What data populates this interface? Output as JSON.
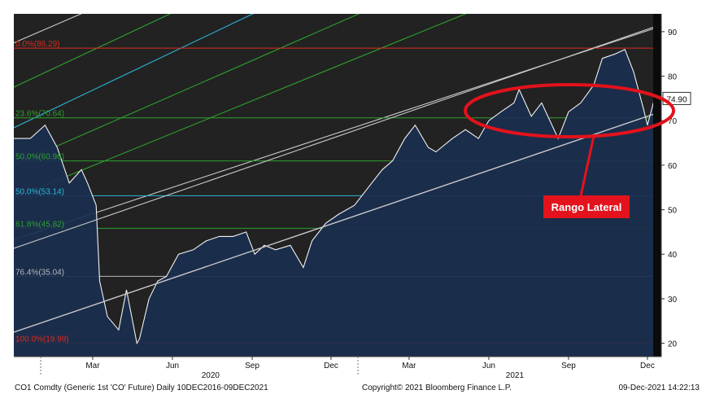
{
  "chart_data": {
    "type": "line",
    "xlabel": "",
    "ylabel": "",
    "ylim": [
      17,
      94
    ],
    "x_range": [
      "2019-12-01",
      "2021-12-17"
    ],
    "y_ticks": [
      20,
      30,
      40,
      50,
      60,
      70,
      80,
      90
    ],
    "x_ticks": [
      {
        "label": "Mar",
        "date": "2020-03-01"
      },
      {
        "label": "Jun",
        "date": "2020-06-01"
      },
      {
        "label": "Sep",
        "date": "2020-09-01"
      },
      {
        "label": "Dec",
        "date": "2020-12-01"
      },
      {
        "label": "Mar",
        "date": "2021-03-01"
      },
      {
        "label": "Jun",
        "date": "2021-06-01"
      },
      {
        "label": "Sep",
        "date": "2021-09-01"
      },
      {
        "label": "Dec",
        "date": "2021-12-01"
      }
    ],
    "year_labels": [
      {
        "label": "2020",
        "date": "2020-07-15"
      },
      {
        "label": "2021",
        "date": "2021-07-01"
      }
    ],
    "year_dividers": [
      "2020-01-01",
      "2021-01-01"
    ],
    "last_value": "74.90",
    "series": [
      {
        "x": [
          "2019-12-01",
          "2019-12-20",
          "2020-01-06",
          "2020-01-20",
          "2020-02-03",
          "2020-02-17",
          "2020-02-24",
          "2020-03-05",
          "2020-03-09",
          "2020-03-18",
          "2020-03-31",
          "2020-04-09",
          "2020-04-15",
          "2020-04-21",
          "2020-04-24",
          "2020-05-05",
          "2020-05-15",
          "2020-05-25",
          "2020-06-08",
          "2020-06-25",
          "2020-07-10",
          "2020-07-25",
          "2020-08-10",
          "2020-08-25",
          "2020-09-04",
          "2020-09-15",
          "2020-09-28",
          "2020-10-15",
          "2020-10-30",
          "2020-11-09",
          "2020-11-25",
          "2020-12-10",
          "2020-12-28",
          "2021-01-13",
          "2021-01-29",
          "2021-02-10",
          "2021-02-24",
          "2021-03-08",
          "2021-03-23",
          "2021-04-01",
          "2021-04-20",
          "2021-05-05",
          "2021-05-20",
          "2021-06-01",
          "2021-06-15",
          "2021-06-30",
          "2021-07-06",
          "2021-07-20",
          "2021-08-01",
          "2021-08-20",
          "2021-09-01",
          "2021-09-15",
          "2021-09-30",
          "2021-10-10",
          "2021-10-25",
          "2021-11-05",
          "2021-11-15",
          "2021-11-26",
          "2021-12-01",
          "2021-12-09"
        ],
        "values": [
          66,
          66,
          69,
          64,
          56,
          59,
          56,
          51,
          34,
          26,
          23,
          32,
          26,
          20,
          21,
          30,
          34,
          35,
          40,
          41,
          43,
          44,
          44,
          45,
          40,
          42,
          41,
          42,
          37,
          43,
          47,
          49,
          51,
          55,
          59,
          61,
          66,
          69,
          64,
          63,
          66,
          68,
          66,
          70,
          72,
          74,
          77,
          71,
          74,
          66,
          72,
          74,
          78,
          84,
          85,
          86,
          81,
          73,
          69,
          74.9
        ]
      }
    ],
    "fib_levels_upper": [
      {
        "label": "0.0%(86.29)",
        "value": 86.29,
        "color": "#e02a1e"
      },
      {
        "label": "23.6%(70.64)",
        "value": 70.64,
        "color": "#2ea02e"
      },
      {
        "label": "50.0%(60.96)",
        "value": 60.96,
        "color": "#2ea02e"
      },
      {
        "label": "50.0%(53.14)",
        "value": 53.14,
        "color": "#2ab8d8"
      },
      {
        "label": "61.8%(45.82)",
        "value": 45.82,
        "color": "#2ea02e"
      },
      {
        "label": "76.4%(35.04)",
        "value": 35.04,
        "color": "#b8b8b8"
      },
      {
        "label": "100.0%(19.99)",
        "value": 19.99,
        "color": "#e02a1e"
      }
    ],
    "annotations": [
      {
        "text": "Rango Lateral",
        "color": "#e3121c"
      }
    ]
  },
  "footer": {
    "ticker": "CO1 Comdty (Generic 1st 'CO' Future)  Daily 10DEC2016-09DEC2021",
    "copyright": "Copyright© 2021 Bloomberg Finance L.P.",
    "timestamp": "09-Dec-2021 14:22:13"
  },
  "colors": {
    "background": "#222222",
    "area_fill": "#1a2f4f",
    "price_line": "#f2f2f2",
    "channel_line": "#c8c8c8",
    "annotation_red": "#e3121c"
  }
}
